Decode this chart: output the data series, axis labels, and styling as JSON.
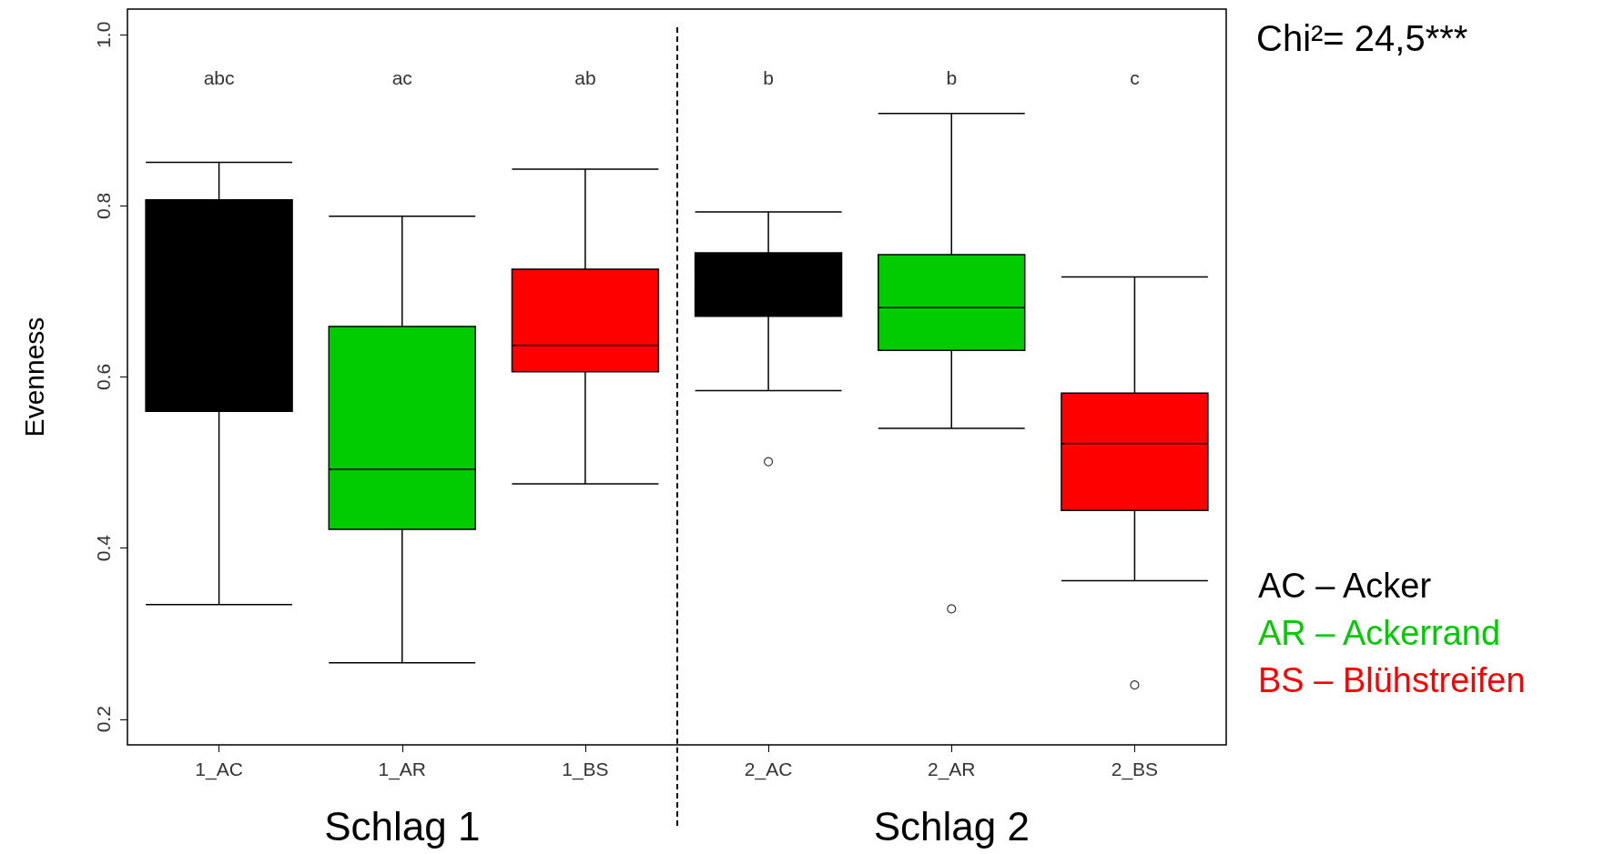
{
  "chart_data": {
    "type": "box",
    "ylabel": "Evenness",
    "categories": [
      "1_AC",
      "1_AR",
      "1_BS",
      "2_AC",
      "2_AR",
      "2_BS"
    ],
    "series": [
      {
        "name": "AC – Acker",
        "color": "#000000",
        "boxes": [
          {
            "low": 0.334,
            "q1": 0.56,
            "median": 0.68,
            "q3": 0.807,
            "high": 0.851
          },
          null,
          null,
          {
            "low": 0.584,
            "q1": 0.671,
            "median": 0.71,
            "q3": 0.745,
            "high": 0.793,
            "outliers": [
              0.501
            ]
          },
          null,
          null
        ]
      },
      {
        "name": "AR – Ackerrand",
        "color": "#00cc00",
        "boxes": [
          null,
          {
            "low": 0.266,
            "q1": 0.422,
            "median": 0.492,
            "q3": 0.659,
            "high": 0.788
          },
          null,
          null,
          {
            "low": 0.54,
            "q1": 0.631,
            "median": 0.681,
            "q3": 0.743,
            "high": 0.908,
            "outliers": [
              0.329
            ]
          },
          null
        ]
      },
      {
        "name": "BS – Blühstreifen",
        "color": "#ff0000",
        "boxes": [
          null,
          null,
          {
            "low": 0.475,
            "q1": 0.606,
            "median": 0.637,
            "q3": 0.726,
            "high": 0.843
          },
          null,
          null,
          {
            "low": 0.362,
            "q1": 0.444,
            "median": 0.522,
            "q3": 0.581,
            "high": 0.717,
            "outliers": [
              0.24
            ]
          }
        ]
      }
    ],
    "ylim": [
      0.17,
      1.03
    ],
    "yticks": [
      0.2,
      0.4,
      0.6,
      0.8,
      {
        "value": 1,
        "label": "1.0"
      }
    ],
    "legend": "right",
    "annotations": [
      "abc",
      "ac",
      "ab",
      "b",
      "b",
      "c",
      "Schlag 1",
      "Schlag 2",
      "Chi²= 24,5***"
    ]
  }
}
